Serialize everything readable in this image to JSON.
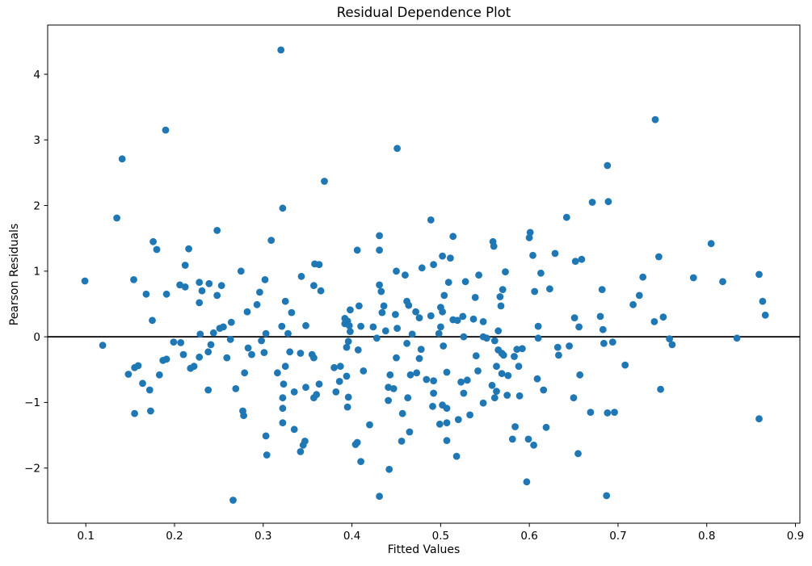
{
  "figure": {
    "title": "Residual Dependence Plot",
    "xlabel": "Fitted Values",
    "ylabel": "Pearson Residuals"
  },
  "chart_data": {
    "type": "scatter",
    "title": "Residual Dependence Plot",
    "xlabel": "Fitted Values",
    "ylabel": "Pearson Residuals",
    "xlim": [
      0.057,
      0.905
    ],
    "ylim": [
      -2.84,
      4.75
    ],
    "x_ticks": [
      0.1,
      0.2,
      0.3,
      0.4,
      0.5,
      0.6,
      0.7,
      0.8,
      0.9
    ],
    "y_ticks": [
      -2,
      -1,
      0,
      1,
      2,
      3,
      4
    ],
    "grid": false,
    "legend_position": "none",
    "marker_color": "#1f77b4",
    "marker_radius": 4.4,
    "axis_color": "#000000",
    "zero_line": {
      "y": 0,
      "color": "#000000",
      "width": 1.8
    },
    "points": [
      [
        0.19,
        3.15
      ],
      [
        0.141,
        2.71
      ],
      [
        0.32,
        4.37
      ],
      [
        0.451,
        2.87
      ],
      [
        0.369,
        2.37
      ],
      [
        0.688,
        2.61
      ],
      [
        0.742,
        3.31
      ],
      [
        0.135,
        1.81
      ],
      [
        0.248,
        1.62
      ],
      [
        0.176,
        1.45
      ],
      [
        0.18,
        1.33
      ],
      [
        0.216,
        1.34
      ],
      [
        0.212,
        1.09
      ],
      [
        0.099,
        0.85
      ],
      [
        0.154,
        0.87
      ],
      [
        0.168,
        0.65
      ],
      [
        0.191,
        0.65
      ],
      [
        0.206,
        0.79
      ],
      [
        0.212,
        0.76
      ],
      [
        0.228,
        0.83
      ],
      [
        0.239,
        0.81
      ],
      [
        0.231,
        0.7
      ],
      [
        0.253,
        0.78
      ],
      [
        0.248,
        0.63
      ],
      [
        0.228,
        0.52
      ],
      [
        0.175,
        0.25
      ],
      [
        0.264,
        0.22
      ],
      [
        0.244,
        0.06
      ],
      [
        0.251,
        0.13
      ],
      [
        0.255,
        0.15
      ],
      [
        0.229,
        0.04
      ],
      [
        0.263,
        -0.04
      ],
      [
        0.119,
        -0.13
      ],
      [
        0.199,
        -0.08
      ],
      [
        0.207,
        -0.09
      ],
      [
        0.241,
        -0.12
      ],
      [
        0.238,
        -0.23
      ],
      [
        0.21,
        -0.27
      ],
      [
        0.228,
        -0.31
      ],
      [
        0.259,
        -0.32
      ],
      [
        0.191,
        -0.34
      ],
      [
        0.187,
        -0.36
      ],
      [
        0.275,
        1.0
      ],
      [
        0.322,
        1.96
      ],
      [
        0.489,
        1.78
      ],
      [
        0.309,
        1.47
      ],
      [
        0.431,
        1.54
      ],
      [
        0.406,
        1.32
      ],
      [
        0.431,
        1.32
      ],
      [
        0.358,
        1.11
      ],
      [
        0.363,
        1.1
      ],
      [
        0.343,
        0.92
      ],
      [
        0.302,
        0.87
      ],
      [
        0.357,
        0.78
      ],
      [
        0.365,
        0.7
      ],
      [
        0.296,
        0.68
      ],
      [
        0.45,
        1.0
      ],
      [
        0.46,
        0.94
      ],
      [
        0.479,
        1.05
      ],
      [
        0.431,
        0.79
      ],
      [
        0.433,
        0.69
      ],
      [
        0.293,
        0.49
      ],
      [
        0.325,
        0.54
      ],
      [
        0.332,
        0.37
      ],
      [
        0.282,
        0.38
      ],
      [
        0.398,
        0.41
      ],
      [
        0.408,
        0.47
      ],
      [
        0.436,
        0.47
      ],
      [
        0.434,
        0.37
      ],
      [
        0.462,
        0.54
      ],
      [
        0.464,
        0.48
      ],
      [
        0.472,
        0.38
      ],
      [
        0.449,
        0.34
      ],
      [
        0.476,
        0.29
      ],
      [
        0.489,
        0.32
      ],
      [
        0.392,
        0.28
      ],
      [
        0.395,
        0.24
      ],
      [
        0.392,
        0.2
      ],
      [
        0.397,
        0.17
      ],
      [
        0.321,
        0.16
      ],
      [
        0.348,
        0.17
      ],
      [
        0.41,
        0.16
      ],
      [
        0.424,
        0.15
      ],
      [
        0.438,
        0.09
      ],
      [
        0.451,
        0.13
      ],
      [
        0.328,
        0.05
      ],
      [
        0.303,
        0.05
      ],
      [
        0.398,
        0.08
      ],
      [
        0.468,
        0.04
      ],
      [
        0.298,
        -0.06
      ],
      [
        0.283,
        -0.17
      ],
      [
        0.287,
        -0.27
      ],
      [
        0.301,
        -0.24
      ],
      [
        0.396,
        -0.07
      ],
      [
        0.394,
        -0.16
      ],
      [
        0.407,
        -0.2
      ],
      [
        0.428,
        -0.02
      ],
      [
        0.462,
        -0.1
      ],
      [
        0.478,
        -0.19
      ],
      [
        0.33,
        -0.23
      ],
      [
        0.342,
        -0.25
      ],
      [
        0.355,
        -0.27
      ],
      [
        0.357,
        -0.32
      ],
      [
        0.45,
        -0.32
      ],
      [
        0.476,
        -0.33
      ],
      [
        0.492,
        1.1
      ],
      [
        0.671,
        2.05
      ],
      [
        0.689,
        2.06
      ],
      [
        0.642,
        1.82
      ],
      [
        0.514,
        1.53
      ],
      [
        0.601,
        1.59
      ],
      [
        0.6,
        1.51
      ],
      [
        0.559,
        1.45
      ],
      [
        0.56,
        1.38
      ],
      [
        0.502,
        1.23
      ],
      [
        0.511,
        1.2
      ],
      [
        0.604,
        1.24
      ],
      [
        0.629,
        1.27
      ],
      [
        0.652,
        1.15
      ],
      [
        0.659,
        1.18
      ],
      [
        0.573,
        0.99
      ],
      [
        0.543,
        0.94
      ],
      [
        0.613,
        0.97
      ],
      [
        0.509,
        0.83
      ],
      [
        0.528,
        0.84
      ],
      [
        0.57,
        0.72
      ],
      [
        0.567,
        0.61
      ],
      [
        0.606,
        0.69
      ],
      [
        0.623,
        0.73
      ],
      [
        0.504,
        0.63
      ],
      [
        0.539,
        0.6
      ],
      [
        0.568,
        0.47
      ],
      [
        0.682,
        0.72
      ],
      [
        0.5,
        0.45
      ],
      [
        0.502,
        0.38
      ],
      [
        0.514,
        0.26
      ],
      [
        0.519,
        0.25
      ],
      [
        0.525,
        0.31
      ],
      [
        0.537,
        0.27
      ],
      [
        0.548,
        0.23
      ],
      [
        0.5,
        0.15
      ],
      [
        0.565,
        0.09
      ],
      [
        0.61,
        0.16
      ],
      [
        0.651,
        0.29
      ],
      [
        0.68,
        0.31
      ],
      [
        0.656,
        0.15
      ],
      [
        0.683,
        0.11
      ],
      [
        0.548,
        0.0
      ],
      [
        0.552,
        -0.02
      ],
      [
        0.526,
        0.0
      ],
      [
        0.561,
        -0.06
      ],
      [
        0.61,
        -0.02
      ],
      [
        0.498,
        0.05
      ],
      [
        0.503,
        -0.14
      ],
      [
        0.54,
        -0.29
      ],
      [
        0.565,
        -0.2
      ],
      [
        0.569,
        -0.25
      ],
      [
        0.571,
        -0.28
      ],
      [
        0.586,
        -0.19
      ],
      [
        0.592,
        -0.18
      ],
      [
        0.583,
        -0.3
      ],
      [
        0.632,
        -0.16
      ],
      [
        0.633,
        -0.28
      ],
      [
        0.645,
        -0.14
      ],
      [
        0.684,
        -0.1
      ],
      [
        0.694,
        -0.08
      ],
      [
        0.805,
        1.42
      ],
      [
        0.746,
        1.22
      ],
      [
        0.728,
        0.91
      ],
      [
        0.785,
        0.9
      ],
      [
        0.818,
        0.84
      ],
      [
        0.859,
        0.95
      ],
      [
        0.724,
        0.63
      ],
      [
        0.717,
        0.49
      ],
      [
        0.863,
        0.54
      ],
      [
        0.866,
        0.33
      ],
      [
        0.741,
        0.23
      ],
      [
        0.751,
        0.3
      ],
      [
        0.758,
        -0.03
      ],
      [
        0.761,
        -0.12
      ],
      [
        0.834,
        -0.02
      ],
      [
        0.148,
        -0.57
      ],
      [
        0.155,
        -0.47
      ],
      [
        0.159,
        -0.44
      ],
      [
        0.183,
        -0.58
      ],
      [
        0.164,
        -0.71
      ],
      [
        0.172,
        -0.81
      ],
      [
        0.218,
        -0.48
      ],
      [
        0.222,
        -0.45
      ],
      [
        0.238,
        -0.81
      ],
      [
        0.269,
        -0.79
      ],
      [
        0.155,
        -1.17
      ],
      [
        0.173,
        -1.13
      ],
      [
        0.266,
        -2.49
      ],
      [
        0.279,
        -0.55
      ],
      [
        0.316,
        -0.55
      ],
      [
        0.325,
        -0.45
      ],
      [
        0.38,
        -0.47
      ],
      [
        0.387,
        -0.45
      ],
      [
        0.413,
        -0.52
      ],
      [
        0.394,
        -0.6
      ],
      [
        0.386,
        -0.68
      ],
      [
        0.323,
        -0.72
      ],
      [
        0.348,
        -0.77
      ],
      [
        0.363,
        -0.72
      ],
      [
        0.335,
        -0.84
      ],
      [
        0.322,
        -0.93
      ],
      [
        0.357,
        -0.93
      ],
      [
        0.36,
        -0.88
      ],
      [
        0.382,
        -0.84
      ],
      [
        0.396,
        -0.92
      ],
      [
        0.395,
        -1.07
      ],
      [
        0.277,
        -1.13
      ],
      [
        0.278,
        -1.2
      ],
      [
        0.322,
        -1.09
      ],
      [
        0.322,
        -1.31
      ],
      [
        0.335,
        -1.41
      ],
      [
        0.42,
        -1.34
      ],
      [
        0.303,
        -1.51
      ],
      [
        0.304,
        -1.8
      ],
      [
        0.342,
        -1.75
      ],
      [
        0.345,
        -1.65
      ],
      [
        0.347,
        -1.59
      ],
      [
        0.404,
        -1.64
      ],
      [
        0.406,
        -1.61
      ],
      [
        0.41,
        -1.9
      ],
      [
        0.465,
        -1.45
      ],
      [
        0.456,
        -1.59
      ],
      [
        0.442,
        -2.02
      ],
      [
        0.431,
        -2.43
      ],
      [
        0.443,
        -0.58
      ],
      [
        0.441,
        -0.77
      ],
      [
        0.447,
        -0.79
      ],
      [
        0.466,
        -0.58
      ],
      [
        0.473,
        -0.55
      ],
      [
        0.484,
        -0.65
      ],
      [
        0.441,
        -0.97
      ],
      [
        0.463,
        -0.93
      ],
      [
        0.457,
        -1.17
      ],
      [
        0.507,
        -0.54
      ],
      [
        0.542,
        -0.52
      ],
      [
        0.563,
        -0.45
      ],
      [
        0.569,
        -0.56
      ],
      [
        0.576,
        -0.59
      ],
      [
        0.588,
        -0.45
      ],
      [
        0.492,
        -0.67
      ],
      [
        0.492,
        -0.86
      ],
      [
        0.491,
        -1.06
      ],
      [
        0.523,
        -0.69
      ],
      [
        0.53,
        -0.66
      ],
      [
        0.526,
        -0.86
      ],
      [
        0.558,
        -0.74
      ],
      [
        0.563,
        -0.83
      ],
      [
        0.561,
        -0.93
      ],
      [
        0.575,
        -0.89
      ],
      [
        0.589,
        -0.9
      ],
      [
        0.548,
        -1.01
      ],
      [
        0.609,
        -0.64
      ],
      [
        0.616,
        -0.81
      ],
      [
        0.657,
        -0.58
      ],
      [
        0.65,
        -0.93
      ],
      [
        0.502,
        -1.04
      ],
      [
        0.507,
        -1.09
      ],
      [
        0.499,
        -1.33
      ],
      [
        0.507,
        -1.31
      ],
      [
        0.52,
        -1.26
      ],
      [
        0.533,
        -1.19
      ],
      [
        0.584,
        -1.37
      ],
      [
        0.581,
        -1.56
      ],
      [
        0.599,
        -1.56
      ],
      [
        0.605,
        -1.65
      ],
      [
        0.619,
        -1.38
      ],
      [
        0.507,
        -1.58
      ],
      [
        0.518,
        -1.82
      ],
      [
        0.655,
        -1.78
      ],
      [
        0.597,
        -2.21
      ],
      [
        0.687,
        -2.42
      ],
      [
        0.669,
        -1.15
      ],
      [
        0.688,
        -1.16
      ],
      [
        0.696,
        -1.15
      ],
      [
        0.708,
        -0.43
      ],
      [
        0.748,
        -0.8
      ],
      [
        0.859,
        -1.25
      ]
    ]
  }
}
